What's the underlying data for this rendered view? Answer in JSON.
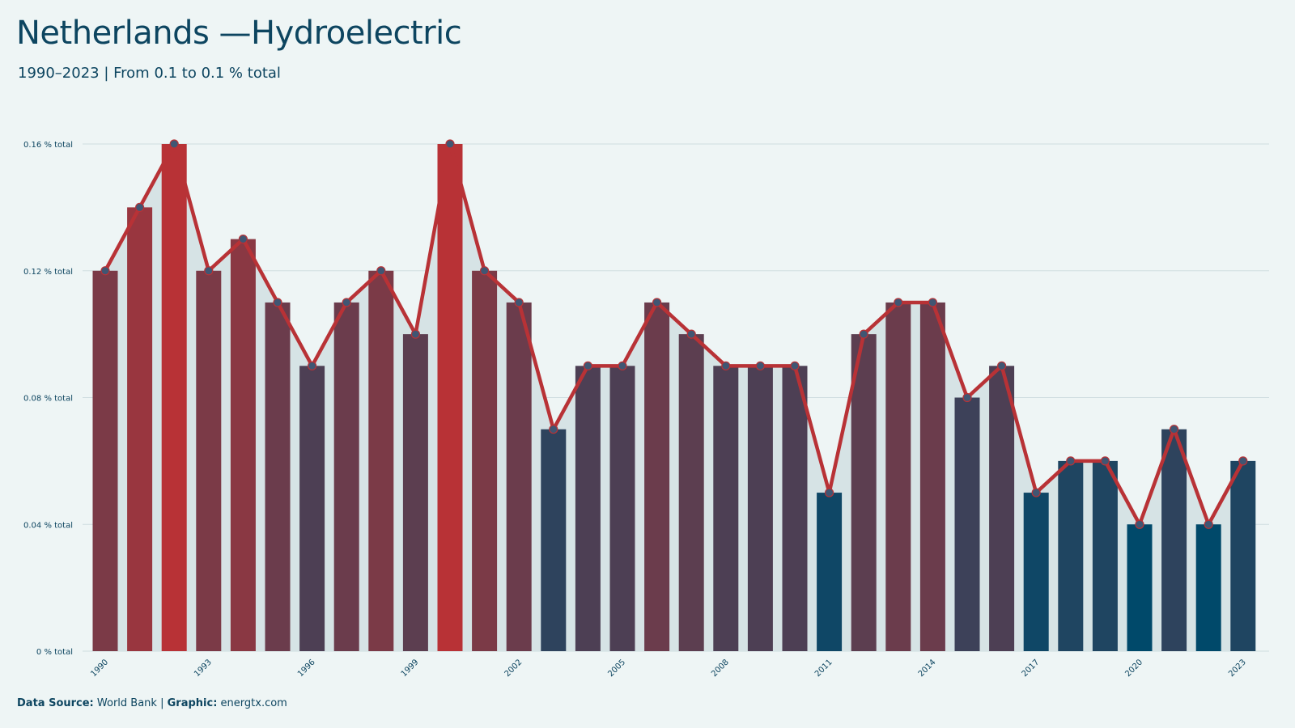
{
  "title": "Netherlands —Hydroelectric",
  "subtitle": "1990–2023 | From 0.1 to 0.1 % total",
  "footer": {
    "source_label": "Data Source:",
    "source_value": "World Bank",
    "separator": "|",
    "graphic_label": "Graphic:",
    "graphic_value": "energtx.com"
  },
  "colors": {
    "background": "#eef5f5",
    "line": "#b83236",
    "high": "#b83236",
    "low": "#00496a",
    "area": "#d6e3e5",
    "marker": "#405673",
    "text": "#0d4560"
  },
  "chart_data": {
    "type": "bar",
    "x": [
      1990,
      1991,
      1992,
      1993,
      1994,
      1995,
      1996,
      1997,
      1998,
      1999,
      2000,
      2001,
      2002,
      2003,
      2004,
      2005,
      2006,
      2007,
      2008,
      2009,
      2010,
      2011,
      2012,
      2013,
      2014,
      2015,
      2016,
      2017,
      2018,
      2019,
      2020,
      2021,
      2022,
      2023
    ],
    "values": [
      0.12,
      0.14,
      0.16,
      0.12,
      0.13,
      0.11,
      0.09,
      0.11,
      0.12,
      0.1,
      0.16,
      0.12,
      0.11,
      0.07,
      0.09,
      0.09,
      0.11,
      0.1,
      0.09,
      0.09,
      0.09,
      0.05,
      0.1,
      0.11,
      0.11,
      0.08,
      0.09,
      0.05,
      0.06,
      0.06,
      0.04,
      0.07,
      0.04,
      0.06
    ],
    "x_tick_labels": [
      "1990",
      "1993",
      "1996",
      "1999",
      "2002",
      "2005",
      "2008",
      "2011",
      "2014",
      "2017",
      "2020",
      "2023"
    ],
    "y_ticks": [
      0,
      0.04,
      0.08,
      0.12,
      0.16
    ],
    "y_tick_labels": [
      "0 % total",
      "0.04 % total",
      "0.08 % total",
      "0.12 % total",
      "0.16 % total"
    ],
    "ylim": [
      0,
      0.16
    ],
    "grid": true,
    "overlay": "line with markers and shaded area"
  }
}
